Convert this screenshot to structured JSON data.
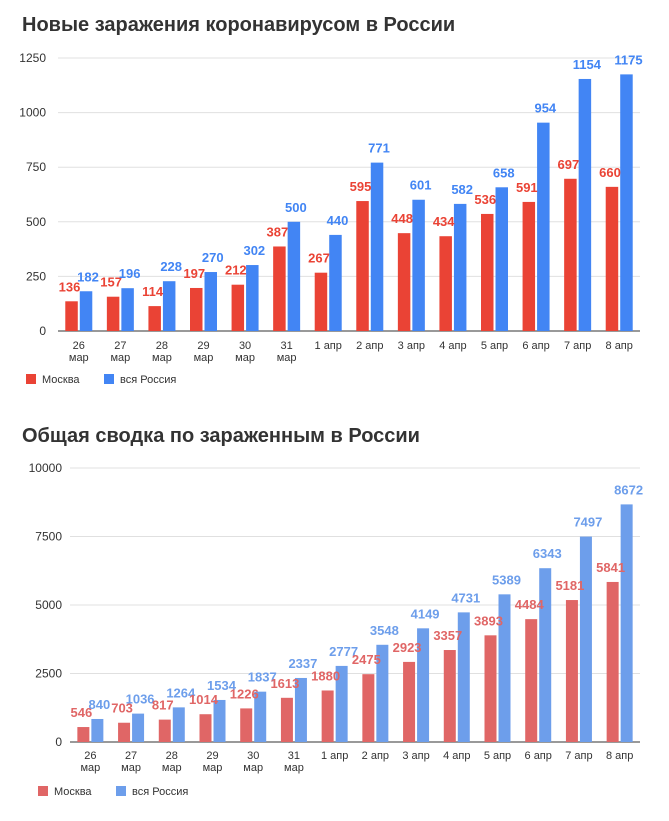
{
  "chart_data": [
    {
      "type": "bar",
      "title": "Новые заражения коронавирусом в России",
      "categories": [
        [
          "26",
          "мар"
        ],
        [
          "27",
          "мар"
        ],
        [
          "28",
          "мар"
        ],
        [
          "29",
          "мар"
        ],
        [
          "30",
          "мар"
        ],
        [
          "31",
          "мар"
        ],
        [
          "1 апр"
        ],
        [
          "2 апр"
        ],
        [
          "3 апр"
        ],
        [
          "4 апр"
        ],
        [
          "5 апр"
        ],
        [
          "6 апр"
        ],
        [
          "7 апр"
        ],
        [
          "8 апр"
        ]
      ],
      "series": [
        {
          "name": "Москва",
          "color": "#ea4335",
          "values": [
            136,
            157,
            114,
            197,
            212,
            387,
            267,
            595,
            448,
            434,
            536,
            591,
            697,
            660
          ]
        },
        {
          "name": "вся Россия",
          "color": "#4285f4",
          "values": [
            182,
            196,
            228,
            270,
            302,
            500,
            440,
            771,
            601,
            582,
            658,
            954,
            1154,
            1175
          ]
        }
      ],
      "yticks": [
        0,
        250,
        500,
        750,
        1000,
        1250
      ],
      "ylim": [
        0,
        1250
      ],
      "grid": true,
      "legend": "bottom-left"
    },
    {
      "type": "bar",
      "title": "Общая сводка по зараженным в России",
      "categories": [
        [
          "26",
          "мар"
        ],
        [
          "27",
          "мар"
        ],
        [
          "28",
          "мар"
        ],
        [
          "29",
          "мар"
        ],
        [
          "30",
          "мар"
        ],
        [
          "31",
          "мар"
        ],
        [
          "1 апр"
        ],
        [
          "2 апр"
        ],
        [
          "3 апр"
        ],
        [
          "4 апр"
        ],
        [
          "5 апр"
        ],
        [
          "6 апр"
        ],
        [
          "7 апр"
        ],
        [
          "8 апр"
        ]
      ],
      "series": [
        {
          "name": "Москва",
          "color": "#e06666",
          "values": [
            546,
            703,
            817,
            1014,
            1226,
            1613,
            1880,
            2475,
            2923,
            3357,
            3893,
            4484,
            5181,
            5841
          ]
        },
        {
          "name": "вся Россия",
          "color": "#6d9eeb",
          "values": [
            840,
            1036,
            1264,
            1534,
            1837,
            2337,
            2777,
            3548,
            4149,
            4731,
            5389,
            6343,
            7497,
            8672
          ]
        }
      ],
      "yticks": [
        0,
        2500,
        5000,
        7500,
        10000
      ],
      "ylim": [
        0,
        10000
      ],
      "grid": true,
      "legend": "bottom-left"
    }
  ]
}
